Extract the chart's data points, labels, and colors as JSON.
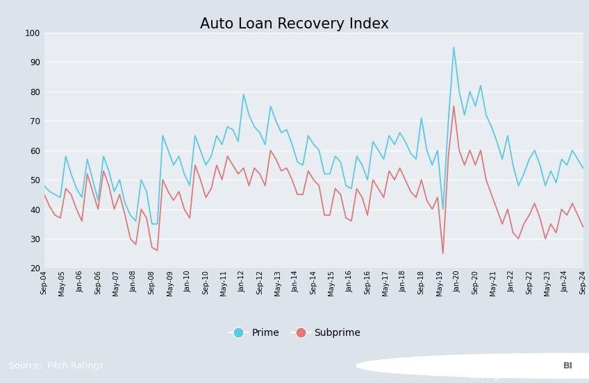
{
  "title": "Auto Loan Recovery Index",
  "background_color": "#dde3ea",
  "plot_background_color": "#e8edf2",
  "title_fontsize": 15,
  "ylim": [
    20,
    100
  ],
  "yticks": [
    20,
    30,
    40,
    50,
    60,
    70,
    80,
    90,
    100
  ],
  "prime_color": "#5bc8e8",
  "subprime_color": "#e07878",
  "source_text": "Source:  Fitch Ratings",
  "footer_bg": "#636b75",
  "x_labels": [
    "Sep-04",
    "May-05",
    "Jan-06",
    "Sep-06",
    "May-07",
    "Jan-08",
    "Sep-08",
    "May-09",
    "Jan-10",
    "Sep-10",
    "May-11",
    "Jan-12",
    "Sep-12",
    "May-13",
    "Jan-14",
    "Sep-14",
    "May-15",
    "Jan-16",
    "Sep-16",
    "May-17",
    "Jan-18",
    "Sep-18",
    "May-19",
    "Jan-20",
    "Sep-20",
    "May-21",
    "Jan-22",
    "Sep-22",
    "May-23",
    "Jan-24",
    "Sep-24"
  ],
  "prime": [
    48,
    46,
    45,
    44,
    58,
    52,
    47,
    44,
    57,
    50,
    43,
    58,
    53,
    46,
    50,
    42,
    38,
    36,
    50,
    46,
    35,
    35,
    65,
    60,
    55,
    58,
    52,
    48,
    65,
    60,
    55,
    58,
    65,
    62,
    68,
    67,
    63,
    79,
    72,
    68,
    66,
    62,
    75,
    70,
    66,
    67,
    62,
    56,
    55,
    65,
    62,
    60,
    52,
    52,
    58,
    56,
    48,
    47,
    58,
    55,
    50,
    63,
    60,
    57,
    65,
    62,
    66,
    63,
    59,
    57,
    71,
    60,
    55,
    60,
    40,
    70,
    95,
    80,
    72,
    80,
    75,
    82,
    72,
    68,
    63,
    57,
    65,
    55,
    48,
    52,
    57,
    60,
    55,
    48,
    53,
    49,
    57,
    55,
    60,
    57,
    54
  ],
  "subprime": [
    45,
    41,
    38,
    37,
    47,
    45,
    40,
    36,
    52,
    46,
    40,
    53,
    48,
    40,
    45,
    38,
    30,
    28,
    40,
    37,
    27,
    26,
    50,
    46,
    43,
    46,
    40,
    37,
    55,
    50,
    44,
    47,
    55,
    50,
    58,
    55,
    52,
    54,
    48,
    54,
    52,
    48,
    60,
    57,
    53,
    54,
    50,
    45,
    45,
    53,
    50,
    48,
    38,
    38,
    47,
    45,
    37,
    36,
    47,
    44,
    38,
    50,
    47,
    44,
    53,
    50,
    54,
    50,
    46,
    44,
    50,
    43,
    40,
    44,
    25,
    58,
    75,
    60,
    55,
    60,
    55,
    60,
    50,
    45,
    40,
    35,
    40,
    32,
    30,
    35,
    38,
    42,
    37,
    30,
    35,
    32,
    40,
    38,
    42,
    38,
    34
  ]
}
